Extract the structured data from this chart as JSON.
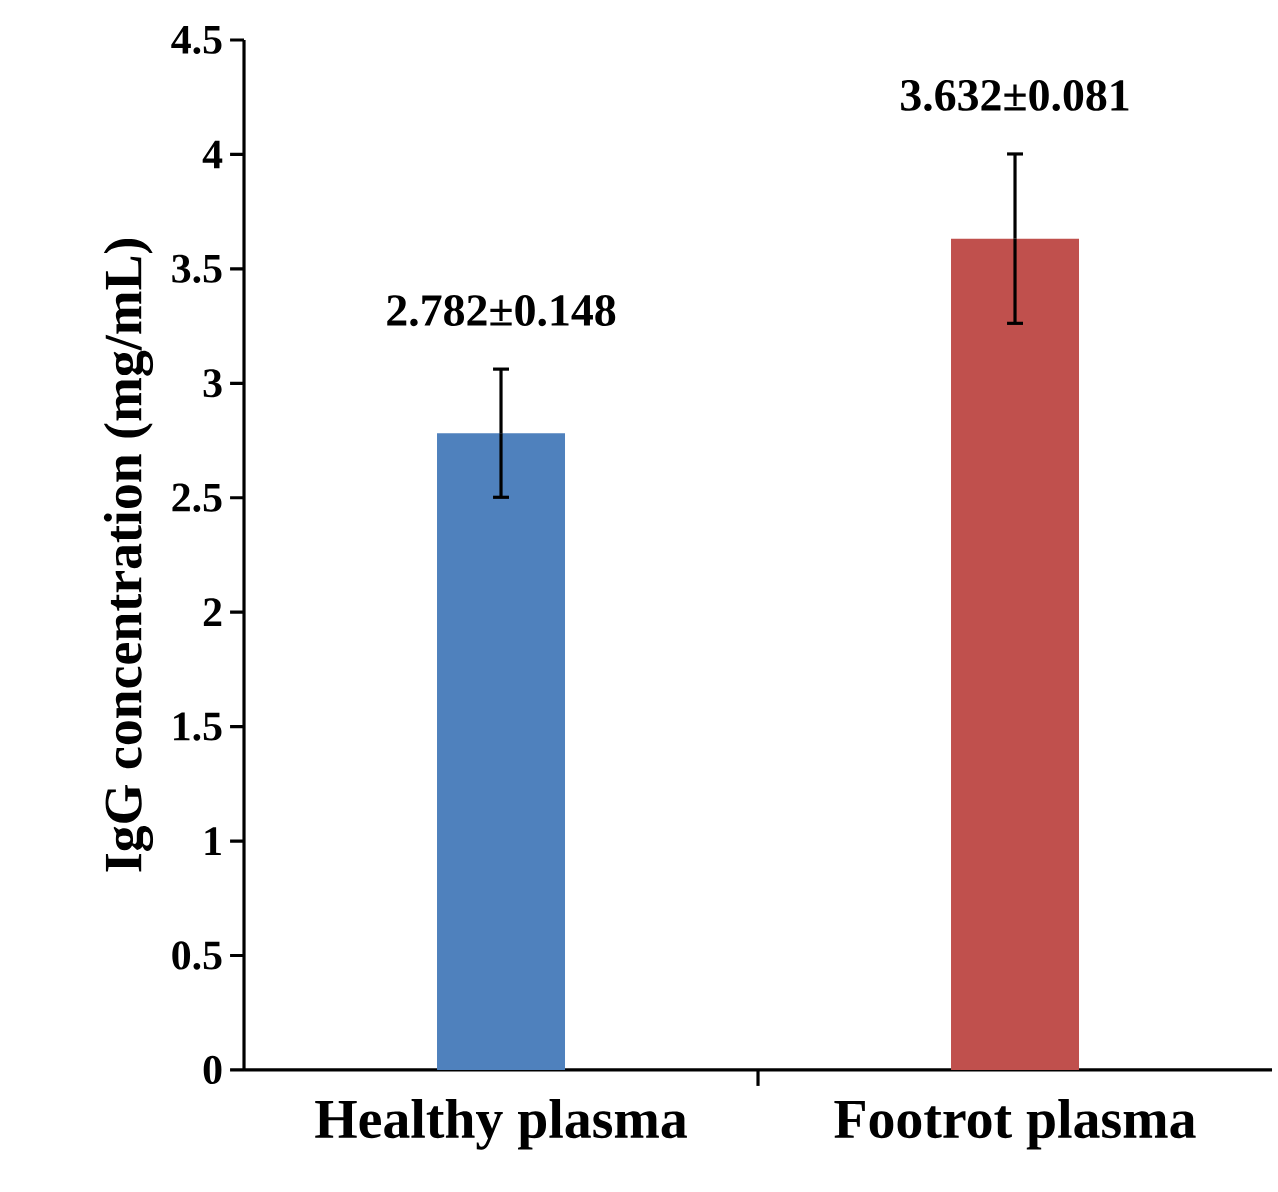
{
  "chart_data": {
    "type": "bar",
    "ylabel": "IgG concentration (mg/mL)",
    "categories": [
      "Healthy plasma",
      "Footrot plasma"
    ],
    "values": [
      2.782,
      3.632
    ],
    "colors": [
      "#4f81bd",
      "#c0504d"
    ],
    "errors": [
      0.28,
      0.37
    ],
    "value_labels": [
      "2.782±0.148",
      "3.632±0.081"
    ],
    "ylim": [
      0,
      4.5
    ],
    "yticks": [
      0,
      0.5,
      1,
      1.5,
      2,
      2.5,
      3,
      3.5,
      4,
      4.5
    ],
    "grid": false
  }
}
